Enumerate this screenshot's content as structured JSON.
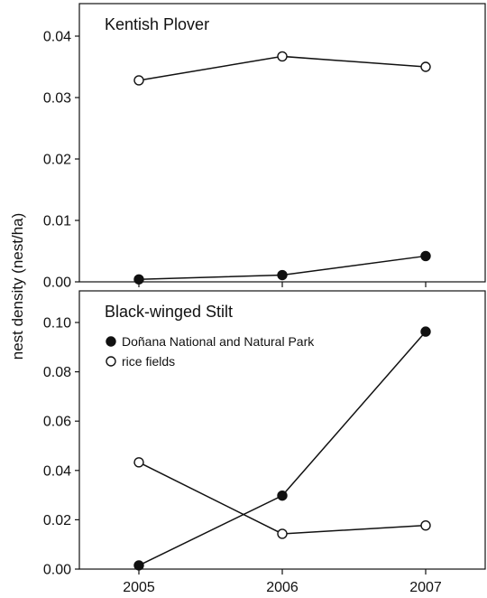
{
  "chart_data": [
    {
      "type": "line",
      "title": "Kentish Plover",
      "x": [
        2005,
        2006,
        2007
      ],
      "ylim": [
        0,
        0.044
      ],
      "yticks": [
        "0.00",
        "0.01",
        "0.02",
        "0.03",
        "0.04"
      ],
      "series": [
        {
          "name": "Doñana National and Natural Park",
          "marker": "filled",
          "values": [
            0.0004,
            0.0011,
            0.0042
          ]
        },
        {
          "name": "rice fields",
          "marker": "open",
          "values": [
            0.0328,
            0.0367,
            0.035
          ]
        }
      ]
    },
    {
      "type": "line",
      "title": "Black-winged Stilt",
      "x": [
        2005,
        2006,
        2007
      ],
      "ylim": [
        0,
        0.11
      ],
      "yticks": [
        "0.00",
        "0.02",
        "0.04",
        "0.06",
        "0.08",
        "0.10"
      ],
      "xticks": [
        "2005",
        "2006",
        "2007"
      ],
      "legend": [
        "Doñana National and Natural Park",
        "rice fields"
      ],
      "series": [
        {
          "name": "Doñana National and Natural Park",
          "marker": "filled",
          "values": [
            0.0015,
            0.0298,
            0.0963
          ]
        },
        {
          "name": "rice fields",
          "marker": "open",
          "values": [
            0.0433,
            0.0143,
            0.0177
          ]
        }
      ]
    }
  ],
  "shared": {
    "ylabel": "nest density (nest/ha)",
    "legend_placement": "upper-left of lower panel"
  }
}
